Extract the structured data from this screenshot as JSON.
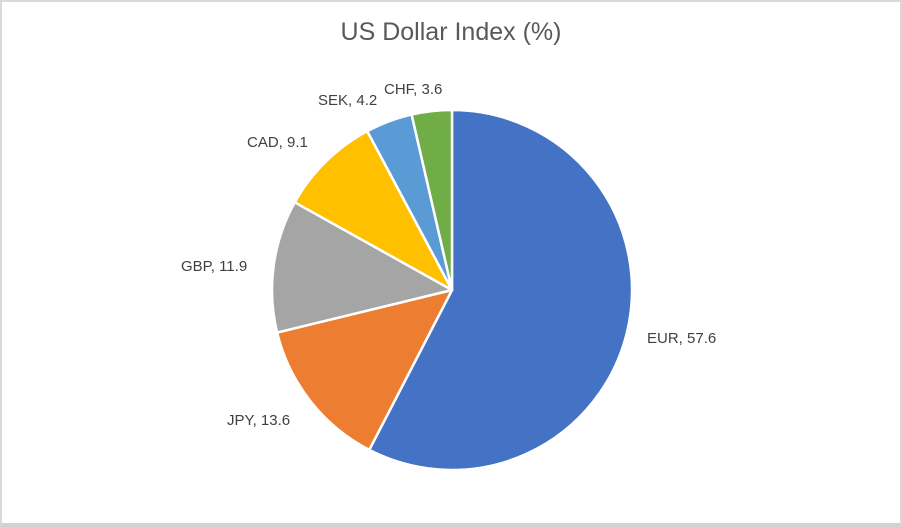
{
  "window": {
    "background_color": "#FFFFFF",
    "border_color": "#D9D9D9"
  },
  "chart_data": {
    "type": "pie",
    "title": "US Dollar Index (%)",
    "title_color": "#595959",
    "label_color": "#404040",
    "legend": "none",
    "start_angle_deg": -90,
    "direction": "clockwise",
    "label_style": "outside-end: category, value",
    "categories": [
      "EUR",
      "JPY",
      "GBP",
      "CAD",
      "SEK",
      "CHF"
    ],
    "values": [
      57.6,
      13.6,
      11.9,
      9.1,
      4.2,
      3.6
    ],
    "slices": [
      {
        "label": "EUR",
        "value": 57.6,
        "color": "#4472C4",
        "label_text": "EUR, 57.6"
      },
      {
        "label": "JPY",
        "value": 13.6,
        "color": "#ED7D31",
        "label_text": "JPY, 13.6"
      },
      {
        "label": "GBP",
        "value": 11.9,
        "color": "#A5A5A5",
        "label_text": "GBP, 11.9"
      },
      {
        "label": "CAD",
        "value": 9.1,
        "color": "#FFC000",
        "label_text": "CAD, 9.1"
      },
      {
        "label": "SEK",
        "value": 4.2,
        "color": "#5B9BD5",
        "label_text": "SEK, 4.2"
      },
      {
        "label": "CHF",
        "value": 3.6,
        "color": "#70AD47",
        "label_text": "CHF, 3.6"
      }
    ]
  }
}
